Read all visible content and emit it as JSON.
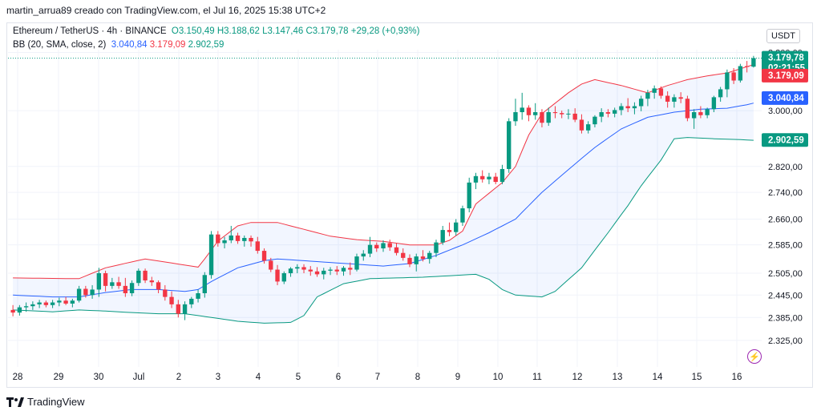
{
  "header": {
    "attribution": "martin_arrua89 creado con TradingView.com, el Jul 16, 2025 15:38 UTC+2"
  },
  "legend": {
    "symbol": "Ethereum / TetherUS · 4h · BINANCE",
    "open": "O3.150,49",
    "high": "H3.188,62",
    "low": "L3.147,46",
    "close": "C3.179,78",
    "change": "+29,28 (+0,93%)",
    "bb_label": "BB (20, SMA, close, 2)",
    "bb_basis": "3.040,84",
    "bb_upper": "3.179,09",
    "bb_lower": "2.902,59"
  },
  "axis": {
    "currency": "USDT",
    "price_ticks": [
      "3.200,00",
      "3.000,00",
      "2.820,00",
      "2.740,00",
      "2.660,00",
      "2.585,00",
      "2.505,00",
      "2.445,00",
      "2.385,00",
      "2.325,00"
    ],
    "date_ticks": [
      "28",
      "29",
      "30",
      "Jul",
      "2",
      "3",
      "4",
      "5",
      "6",
      "7",
      "8",
      "9",
      "10",
      "11",
      "12",
      "13",
      "14",
      "15",
      "16"
    ]
  },
  "price_labels": {
    "last": "3.179,78",
    "countdown": "02:21:55",
    "upper": "3.179,09",
    "basis": "3.040,84",
    "lower": "2.902,59"
  },
  "colors": {
    "up": "#089981",
    "down": "#f23645",
    "basis": "#2962ff",
    "upper": "#f23645",
    "lower": "#089981",
    "fill": "#2962ff"
  },
  "footer": {
    "brand": "TradingView"
  },
  "icons": [
    "tradingview-logo-icon",
    "flash-icon"
  ],
  "chart_data": {
    "type": "candlestick",
    "title": "Ethereum / TetherUS · 4h · BINANCE",
    "ylabel": "USDT",
    "scale": "log",
    "x": [
      "28",
      "29",
      "30",
      "Jul",
      "2",
      "3",
      "4",
      "5",
      "6",
      "7",
      "8",
      "9",
      "10",
      "11",
      "12",
      "13",
      "14",
      "15",
      "16"
    ],
    "ylim": [
      2290,
      3210
    ],
    "candles": [
      [
        2405,
        2418,
        2388,
        2398
      ],
      [
        2398,
        2418,
        2390,
        2412
      ],
      [
        2412,
        2425,
        2400,
        2415
      ],
      [
        2415,
        2428,
        2405,
        2420
      ],
      [
        2420,
        2432,
        2410,
        2425
      ],
      [
        2425,
        2430,
        2412,
        2418
      ],
      [
        2418,
        2432,
        2410,
        2425
      ],
      [
        2425,
        2438,
        2415,
        2430
      ],
      [
        2430,
        2440,
        2418,
        2422
      ],
      [
        2422,
        2435,
        2412,
        2430
      ],
      [
        2430,
        2470,
        2425,
        2462
      ],
      [
        2462,
        2470,
        2438,
        2445
      ],
      [
        2445,
        2472,
        2435,
        2460
      ],
      [
        2460,
        2520,
        2440,
        2505
      ],
      [
        2505,
        2512,
        2455,
        2470
      ],
      [
        2470,
        2492,
        2462,
        2480
      ],
      [
        2480,
        2495,
        2462,
        2470
      ],
      [
        2470,
        2492,
        2440,
        2450
      ],
      [
        2450,
        2485,
        2442,
        2478
      ],
      [
        2478,
        2518,
        2470,
        2512
      ],
      [
        2512,
        2518,
        2478,
        2485
      ],
      [
        2485,
        2495,
        2470,
        2480
      ],
      [
        2480,
        2485,
        2450,
        2460
      ],
      [
        2460,
        2472,
        2430,
        2440
      ],
      [
        2440,
        2455,
        2410,
        2420
      ],
      [
        2420,
        2432,
        2385,
        2395
      ],
      [
        2395,
        2428,
        2378,
        2420
      ],
      [
        2420,
        2440,
        2410,
        2435
      ],
      [
        2435,
        2460,
        2425,
        2450
      ],
      [
        2450,
        2508,
        2438,
        2500
      ],
      [
        2500,
        2625,
        2490,
        2615
      ],
      [
        2615,
        2625,
        2580,
        2590
      ],
      [
        2590,
        2608,
        2575,
        2598
      ],
      [
        2598,
        2640,
        2590,
        2612
      ],
      [
        2612,
        2620,
        2588,
        2596
      ],
      [
        2596,
        2612,
        2580,
        2605
      ],
      [
        2605,
        2612,
        2580,
        2595
      ],
      [
        2595,
        2608,
        2560,
        2568
      ],
      [
        2568,
        2575,
        2532,
        2540
      ],
      [
        2540,
        2548,
        2508,
        2515
      ],
      [
        2515,
        2528,
        2472,
        2482
      ],
      [
        2482,
        2510,
        2475,
        2505
      ],
      [
        2505,
        2522,
        2495,
        2518
      ],
      [
        2518,
        2530,
        2505,
        2522
      ],
      [
        2522,
        2530,
        2505,
        2515
      ],
      [
        2515,
        2525,
        2498,
        2510
      ],
      [
        2510,
        2522,
        2495,
        2502
      ],
      [
        2502,
        2520,
        2488,
        2512
      ],
      [
        2512,
        2522,
        2500,
        2515
      ],
      [
        2515,
        2525,
        2500,
        2510
      ],
      [
        2510,
        2525,
        2498,
        2520
      ],
      [
        2520,
        2535,
        2500,
        2515
      ],
      [
        2515,
        2560,
        2510,
        2552
      ],
      [
        2552,
        2570,
        2540,
        2560
      ],
      [
        2560,
        2608,
        2550,
        2585
      ],
      [
        2585,
        2592,
        2565,
        2575
      ],
      [
        2575,
        2598,
        2565,
        2590
      ],
      [
        2590,
        2600,
        2568,
        2578
      ],
      [
        2578,
        2590,
        2555,
        2562
      ],
      [
        2562,
        2575,
        2540,
        2548
      ],
      [
        2548,
        2558,
        2522,
        2530
      ],
      [
        2530,
        2560,
        2510,
        2552
      ],
      [
        2552,
        2570,
        2538,
        2545
      ],
      [
        2545,
        2568,
        2532,
        2562
      ],
      [
        2562,
        2600,
        2550,
        2592
      ],
      [
        2592,
        2640,
        2585,
        2628
      ],
      [
        2628,
        2650,
        2610,
        2622
      ],
      [
        2622,
        2660,
        2612,
        2650
      ],
      [
        2650,
        2700,
        2640,
        2692
      ],
      [
        2692,
        2785,
        2680,
        2770
      ],
      [
        2770,
        2800,
        2750,
        2790
      ],
      [
        2790,
        2808,
        2770,
        2780
      ],
      [
        2780,
        2800,
        2765,
        2788
      ],
      [
        2788,
        2800,
        2765,
        2772
      ],
      [
        2772,
        2825,
        2765,
        2812
      ],
      [
        2812,
        2975,
        2800,
        2965
      ],
      [
        2965,
        3040,
        2950,
        2995
      ],
      [
        2995,
        3060,
        2970,
        3010
      ],
      [
        3010,
        3018,
        2965,
        2985
      ],
      [
        2985,
        3025,
        2970,
        2995
      ],
      [
        2995,
        3005,
        2945,
        2960
      ],
      [
        2960,
        3010,
        2950,
        2995
      ],
      [
        2995,
        3015,
        2975,
        2992
      ],
      [
        2992,
        3000,
        2975,
        2988
      ],
      [
        2988,
        3005,
        2972,
        2990
      ],
      [
        2990,
        3008,
        2962,
        2970
      ],
      [
        2970,
        2988,
        2925,
        2935
      ],
      [
        2935,
        2965,
        2925,
        2955
      ],
      [
        2955,
        2985,
        2945,
        2980
      ],
      [
        2980,
        3008,
        2962,
        2995
      ],
      [
        2995,
        3005,
        2978,
        2990
      ],
      [
        2990,
        3010,
        2978,
        3002
      ],
      [
        3002,
        3025,
        2985,
        3015
      ],
      [
        3015,
        3042,
        2995,
        3008
      ],
      [
        3008,
        3028,
        2988,
        3015
      ],
      [
        3015,
        3050,
        2998,
        3040
      ],
      [
        3040,
        3070,
        3015,
        3060
      ],
      [
        3060,
        3085,
        3040,
        3075
      ],
      [
        3075,
        3082,
        3040,
        3050
      ],
      [
        3050,
        3065,
        3010,
        3030
      ],
      [
        3030,
        3055,
        3010,
        3045
      ],
      [
        3045,
        3062,
        3025,
        3040
      ],
      [
        3040,
        3050,
        2965,
        2975
      ],
      [
        2975,
        3005,
        2940,
        2995
      ],
      [
        2995,
        3015,
        2975,
        2985
      ],
      [
        2985,
        3010,
        2975,
        3005
      ],
      [
        3005,
        3050,
        2995,
        3045
      ],
      [
        3045,
        3080,
        3030,
        3072
      ],
      [
        3072,
        3140,
        3045,
        3130
      ],
      [
        3130,
        3145,
        3090,
        3102
      ],
      [
        3102,
        3160,
        3095,
        3152
      ],
      [
        3152,
        3170,
        3130,
        3150
      ],
      [
        3150,
        3188,
        3147,
        3180
      ]
    ],
    "bands": {
      "upper": [
        [
          0,
          2492
        ],
        [
          9,
          2490
        ],
        [
          10,
          2490
        ],
        [
          14,
          2520
        ],
        [
          20,
          2545
        ],
        [
          28,
          2522
        ],
        [
          29,
          2545
        ],
        [
          31,
          2596
        ],
        [
          34,
          2640
        ],
        [
          36,
          2650
        ],
        [
          40,
          2650
        ],
        [
          44,
          2630
        ],
        [
          48,
          2610
        ],
        [
          52,
          2600
        ],
        [
          56,
          2595
        ],
        [
          60,
          2585
        ],
        [
          64,
          2585
        ],
        [
          66,
          2598
        ],
        [
          68,
          2625
        ],
        [
          70,
          2705
        ],
        [
          74,
          2770
        ],
        [
          76,
          2820
        ],
        [
          78,
          2920
        ],
        [
          80,
          2990
        ],
        [
          84,
          3060
        ],
        [
          86,
          3090
        ],
        [
          88,
          3105
        ],
        [
          92,
          3085
        ],
        [
          96,
          3060
        ],
        [
          99,
          3085
        ],
        [
          102,
          3105
        ],
        [
          105,
          3118
        ],
        [
          108,
          3128
        ],
        [
          111,
          3150
        ],
        [
          114,
          3172
        ],
        [
          115,
          3180
        ]
      ],
      "basis": [
        [
          0,
          2445
        ],
        [
          6,
          2440
        ],
        [
          10,
          2440
        ],
        [
          14,
          2452
        ],
        [
          18,
          2460
        ],
        [
          22,
          2460
        ],
        [
          26,
          2455
        ],
        [
          28,
          2460
        ],
        [
          30,
          2482
        ],
        [
          34,
          2520
        ],
        [
          38,
          2540
        ],
        [
          40,
          2545
        ],
        [
          44,
          2540
        ],
        [
          48,
          2535
        ],
        [
          52,
          2530
        ],
        [
          56,
          2525
        ],
        [
          60,
          2532
        ],
        [
          64,
          2555
        ],
        [
          68,
          2585
        ],
        [
          72,
          2620
        ],
        [
          76,
          2660
        ],
        [
          80,
          2740
        ],
        [
          84,
          2810
        ],
        [
          88,
          2880
        ],
        [
          92,
          2940
        ],
        [
          96,
          2978
        ],
        [
          100,
          2995
        ],
        [
          104,
          3005
        ],
        [
          108,
          3008
        ],
        [
          111,
          3020
        ],
        [
          115,
          3041
        ]
      ],
      "lower": [
        [
          0,
          2405
        ],
        [
          6,
          2400
        ],
        [
          10,
          2405
        ],
        [
          14,
          2402
        ],
        [
          18,
          2398
        ],
        [
          22,
          2395
        ],
        [
          26,
          2395
        ],
        [
          30,
          2385
        ],
        [
          34,
          2375
        ],
        [
          38,
          2370
        ],
        [
          42,
          2372
        ],
        [
          44,
          2390
        ],
        [
          46,
          2440
        ],
        [
          50,
          2476
        ],
        [
          54,
          2490
        ],
        [
          58,
          2492
        ],
        [
          62,
          2494
        ],
        [
          66,
          2498
        ],
        [
          70,
          2502
        ],
        [
          72,
          2488
        ],
        [
          74,
          2460
        ],
        [
          76,
          2445
        ],
        [
          80,
          2440
        ],
        [
          82,
          2455
        ],
        [
          86,
          2520
        ],
        [
          90,
          2620
        ],
        [
          93,
          2700
        ],
        [
          95,
          2760
        ],
        [
          98,
          2840
        ],
        [
          100,
          2908
        ],
        [
          102,
          2912
        ],
        [
          106,
          2908
        ],
        [
          110,
          2905
        ],
        [
          113,
          2902
        ],
        [
          115,
          2903
        ]
      ]
    }
  }
}
